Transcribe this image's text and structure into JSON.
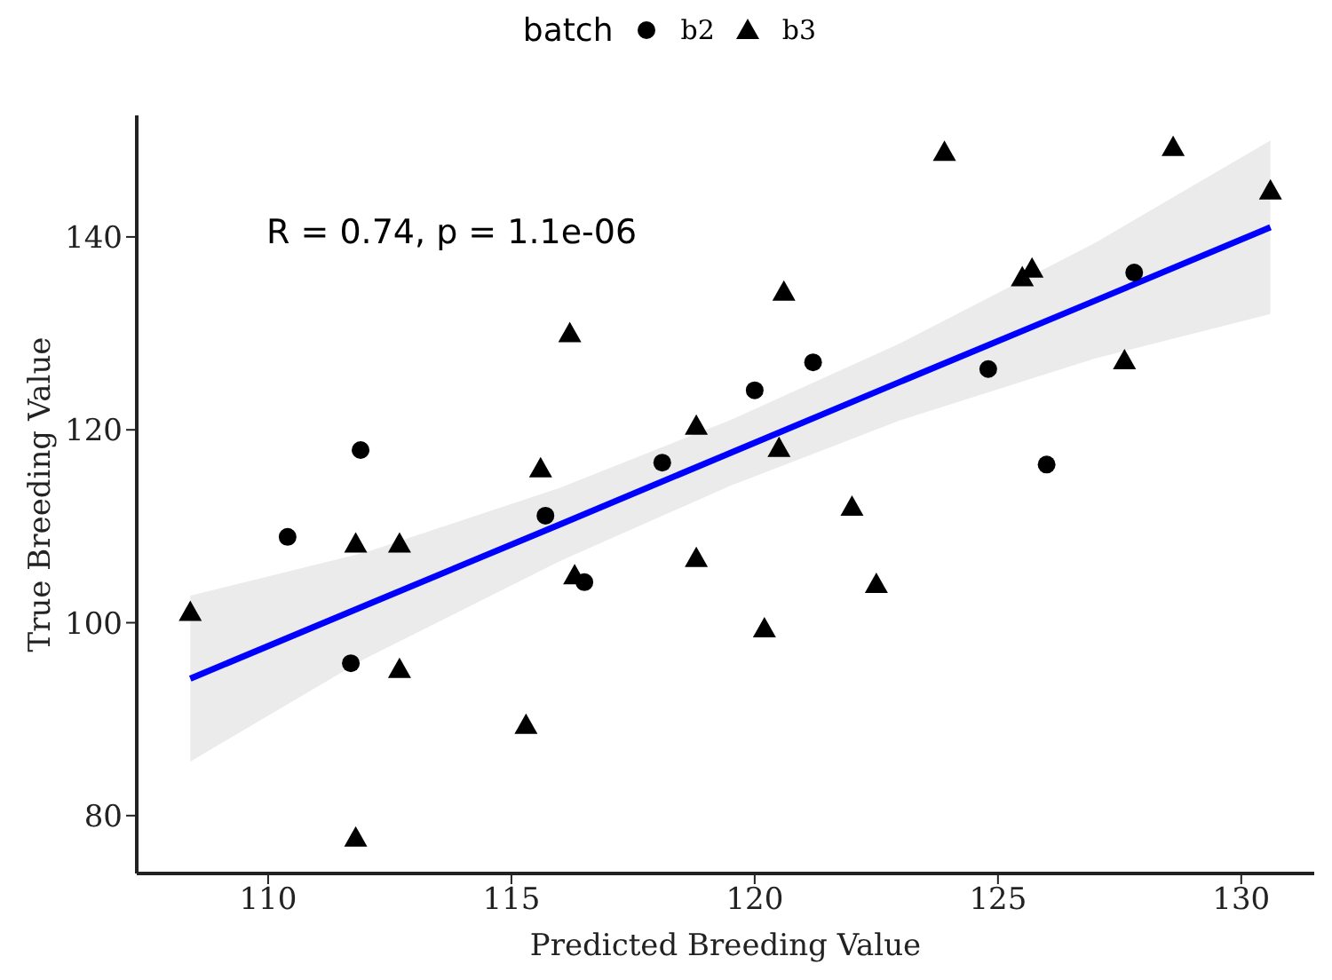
{
  "chart_data": {
    "type": "scatter",
    "xlabel": "Predicted Breeding Value",
    "ylabel": "True Breeding Value",
    "legend_title": "batch",
    "legend": "top",
    "annotations": [
      "R = 0.74, p = 1.1e-06"
    ],
    "xlim": [
      107.3,
      131.5
    ],
    "xticks": [
      110,
      115,
      120,
      125,
      130
    ],
    "ylim": [
      74,
      152.6
    ],
    "yticks": [
      80,
      100,
      120,
      140
    ],
    "series": [
      {
        "name": "b2",
        "color": "#000000",
        "marker": "circle",
        "x": [
          110.4,
          111.9,
          111.7,
          115.7,
          116.5,
          118.1,
          120.0,
          121.2,
          124.8,
          126.0,
          127.8
        ],
        "values": [
          108.9,
          117.9,
          95.8,
          111.1,
          104.2,
          116.6,
          124.1,
          127.0,
          126.3,
          116.4,
          136.3
        ]
      },
      {
        "name": "b3",
        "color": "#000000",
        "marker": "triangle",
        "x": [
          116.2,
          115.6,
          118.8,
          111.8,
          112.7,
          108.4,
          112.7,
          115.3,
          111.8,
          116.3,
          118.8,
          122.0,
          122.5,
          120.2,
          123.9,
          128.6,
          130.6,
          120.6,
          125.5,
          125.7,
          127.6,
          120.5
        ],
        "values": [
          130.0,
          116.0,
          120.4,
          108.2,
          108.2,
          101.1,
          95.2,
          89.4,
          77.7,
          104.9,
          106.7,
          112.0,
          104.0,
          99.4,
          148.8,
          149.3,
          144.8,
          134.3,
          135.8,
          136.7,
          127.2,
          118.1
        ]
      },
      {
        "type": "line",
        "color": "#0000ff",
        "marker": "none",
        "x": [
          108.4,
          112,
          116,
          119.5,
          123,
          127,
          130.6
        ],
        "values": [
          94.2,
          101.8,
          110.2,
          117.6,
          125.0,
          133.4,
          141.0
        ],
        "lower": [
          85.6,
          96.3,
          106.4,
          114.2,
          121.0,
          127.4,
          132.0
        ],
        "upper": [
          102.8,
          107.3,
          114.0,
          121.0,
          129.0,
          139.4,
          150.0
        ]
      }
    ]
  }
}
